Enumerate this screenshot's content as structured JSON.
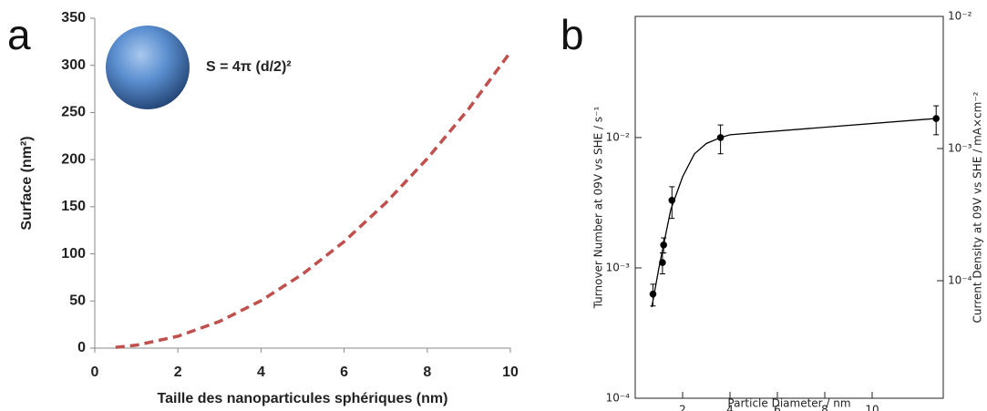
{
  "chart_data": [
    {
      "type": "line",
      "panel_label": "a",
      "annotation": "S = 4π (d/2)²",
      "xlabel": "Taille des nanoparticules sphériques (nm)",
      "ylabel": "Surface (nm²)",
      "x": [
        0.5,
        1,
        2,
        3,
        4,
        5,
        6,
        7,
        8,
        9,
        10
      ],
      "values": [
        0.8,
        3.1,
        12.6,
        28.3,
        50.3,
        78.5,
        113,
        154,
        201,
        254,
        314
      ],
      "color": "#c0504d",
      "line_style": "dashed",
      "xlim": [
        0,
        10
      ],
      "ylim": [
        0,
        350
      ],
      "xticks": [
        0,
        2,
        4,
        6,
        8,
        10
      ],
      "yticks": [
        0,
        50,
        100,
        150,
        200,
        250,
        300,
        350
      ]
    },
    {
      "type": "scatter",
      "panel_label": "b",
      "y_scale": "log",
      "xlabel": "Particle Diameter / nm",
      "ylabel": "Turnover Number at 09V vs SHE / s⁻¹",
      "y2label": "Current Density at 09V vs SHE / mA×cm⁻²",
      "x": [
        0.75,
        1.15,
        1.2,
        1.55,
        3.6,
        12.7
      ],
      "values": [
        0.00063,
        0.0011,
        0.0015,
        0.0033,
        0.01,
        0.014
      ],
      "errors": [
        0.00012,
        0.0002,
        0.0002,
        0.0009,
        0.0025,
        0.0035
      ],
      "curve": {
        "x": [
          0.7,
          1,
          1.5,
          2,
          2.5,
          3,
          3.6,
          4,
          8,
          12.7
        ],
        "values": [
          0.0005,
          0.001,
          0.0028,
          0.005,
          0.0075,
          0.009,
          0.01,
          0.0105,
          0.012,
          0.014
        ]
      },
      "color": "#000000",
      "xlim": [
        0,
        13
      ],
      "ylim": [
        0.0001,
        0.085
      ],
      "y2lim": [
        1.29e-05,
        0.01
      ],
      "xticks": [
        2,
        4,
        6,
        8,
        10
      ],
      "yticks": [
        {
          "value": 0.0001,
          "label": "10⁻⁴"
        },
        {
          "value": 0.001,
          "label": "10⁻³"
        },
        {
          "value": 0.01,
          "label": "10⁻²"
        }
      ],
      "y2ticks": [
        {
          "value": 0.0001,
          "label": "10⁻⁴"
        },
        {
          "value": 0.001,
          "label": "10⁻³"
        },
        {
          "value": 0.01,
          "label": "10⁻²"
        }
      ]
    }
  ]
}
